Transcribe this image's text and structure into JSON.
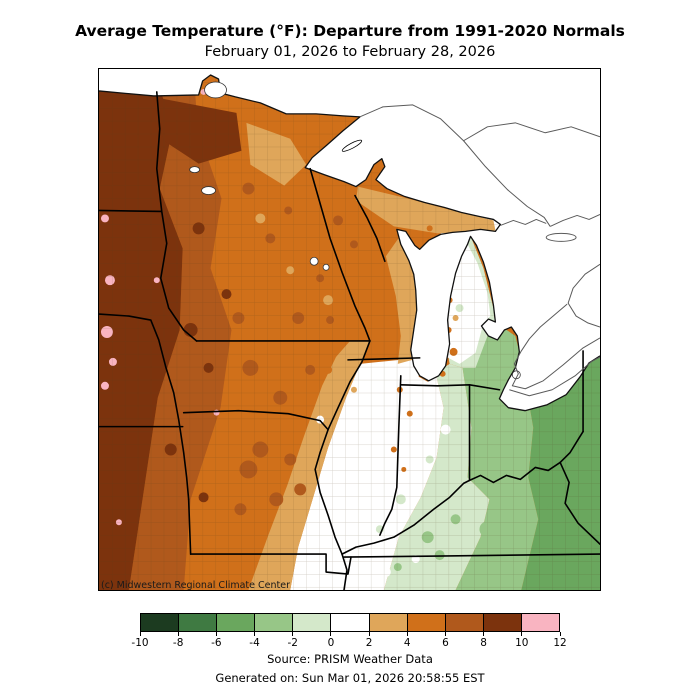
{
  "title": "Average Temperature (°F): Departure from 1991-2020 Normals",
  "subtitle": "February 01, 2026 to February 28, 2026",
  "map": {
    "attribution": "(c) Midwestern Regional Climate Center"
  },
  "colors": {
    "m10_8": "#1c3b20",
    "m8_6": "#3f7a42",
    "m6_4": "#6aa75e",
    "m4_2": "#97c687",
    "m2_0": "#d4e8ca",
    "p0_2": "#ffffff",
    "p2_4": "#dfa65a",
    "p4_6": "#d0701a",
    "p6_8": "#b0591c",
    "p8_10": "#7c330d",
    "p10_12": "#f9b4c1",
    "state_border": "#000000",
    "canada_outline": "#5a5a5a",
    "water": "#ffffff"
  },
  "colorbar": {
    "tick_labels": [
      "-10",
      "-8",
      "-6",
      "-4",
      "-2",
      "0",
      "2",
      "4",
      "6",
      "8",
      "10",
      "12"
    ],
    "segments": [
      {
        "range": "-10 to -8",
        "color": "#1c3b20"
      },
      {
        "range": "-8 to -6",
        "color": "#3f7a42"
      },
      {
        "range": "-6 to -4",
        "color": "#6aa75e"
      },
      {
        "range": "-4 to -2",
        "color": "#97c687"
      },
      {
        "range": "-2 to 0",
        "color": "#d4e8ca"
      },
      {
        "range": "0 to 2",
        "color": "#ffffff"
      },
      {
        "range": "2 to 4",
        "color": "#dfa65a"
      },
      {
        "range": "4 to 6",
        "color": "#d0701a"
      },
      {
        "range": "6 to 8",
        "color": "#b0591c"
      },
      {
        "range": "8 to 10",
        "color": "#7c330d"
      },
      {
        "range": "10 to 12",
        "color": "#f9b4c1"
      }
    ]
  },
  "footer": {
    "source": "Source: PRISM Weather Data",
    "generated": "Generated on: Sun Mar 01, 2026 20:58:55 EST"
  },
  "chart_data": {
    "type": "heatmap",
    "subtype": "choropleth-map",
    "title": "Average Temperature (°F): Departure from 1991-2020 Normals",
    "subtitle": "February 01, 2026 to February 28, 2026",
    "unit": "°F departure from normal",
    "region_shown": "Midwestern United States (Dakotas/Nebraska/Kansas edge, Minnesota, Iowa, Missouri, Wisconsin, Illinois, Michigan, Indiana, Ohio, Kentucky, fringes of neighboring states; Great Lakes shown as water)",
    "legend_position": "bottom",
    "scale_breakpoints": [
      -10,
      -8,
      -6,
      -4,
      -2,
      0,
      2,
      4,
      6,
      8,
      10,
      12
    ],
    "scale_colors": [
      "#1c3b20",
      "#3f7a42",
      "#6aa75e",
      "#97c687",
      "#d4e8ca",
      "#ffffff",
      "#dfa65a",
      "#d0701a",
      "#b0591c",
      "#7c330d",
      "#f9b4c1"
    ],
    "regions": [
      {
        "area": "far western edge (western Dakotas, Nebraska, Kansas strip)",
        "departure_f": "+8 to +10 with scattered +10 to +12 (pink) patches"
      },
      {
        "area": "eastern Dakotas, northwestern Minnesota, western Iowa, central Missouri patches",
        "departure_f": "+6 to +8"
      },
      {
        "area": "central/eastern Minnesota, most of Wisconsin, Iowa, Missouri",
        "departure_f": "+4 to +6"
      },
      {
        "area": "northeastern Minnesota, eastern Wisconsin, Michigan UP south shore, SE Iowa to western Illinois band",
        "departure_f": "+2 to +4"
      },
      {
        "area": "central Illinois, western Indiana, northern Lower Michigan, eastern UP, southeastern Missouri",
        "departure_f": "0 to +2"
      },
      {
        "area": "eastern Indiana, southern Illinois tip, central Lower Michigan, western Kentucky",
        "departure_f": "-2 to 0"
      },
      {
        "area": "Ohio, central/eastern Kentucky, southeastern Michigan (Thumb)",
        "departure_f": "-4 to -2"
      },
      {
        "area": "eastern Ohio, eastern Kentucky mountains, West Virginia edge",
        "departure_f": "-6 to -4"
      }
    ],
    "annotations": [
      "(c) Midwestern Regional Climate Center"
    ],
    "source": "Source: PRISM Weather Data",
    "generated": "Generated on: Sun Mar 01, 2026 20:58:55 EST"
  }
}
